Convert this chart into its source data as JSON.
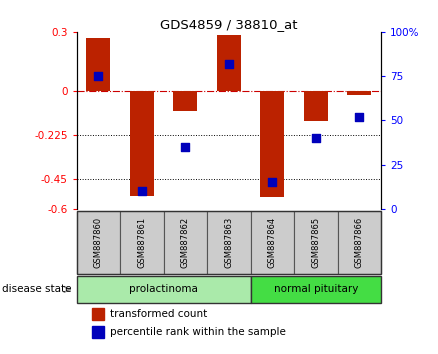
{
  "title": "GDS4859 / 38810_at",
  "samples": [
    "GSM887860",
    "GSM887861",
    "GSM887862",
    "GSM887863",
    "GSM887864",
    "GSM887865",
    "GSM887866"
  ],
  "transformed_count": [
    0.27,
    -0.535,
    -0.1,
    0.285,
    -0.54,
    -0.155,
    -0.02
  ],
  "percentile_rank": [
    75,
    10,
    35,
    82,
    15,
    40,
    52
  ],
  "groups": [
    {
      "label": "prolactinoma",
      "indices": [
        0,
        1,
        2,
        3
      ],
      "color": "#aaeaaa"
    },
    {
      "label": "normal pituitary",
      "indices": [
        4,
        5,
        6
      ],
      "color": "#44dd44"
    }
  ],
  "ylim_left": [
    -0.6,
    0.3
  ],
  "ylim_right": [
    0,
    100
  ],
  "yticks_left": [
    -0.6,
    -0.45,
    -0.225,
    0,
    0.3
  ],
  "ytick_labels_left": [
    "-0.6",
    "-0.45",
    "-0.225",
    "0",
    "0.3"
  ],
  "yticks_right": [
    0,
    25,
    50,
    75,
    100
  ],
  "ytick_labels_right": [
    "0",
    "25",
    "50",
    "75",
    "100%"
  ],
  "bar_color": "#bb2200",
  "dot_color": "#0000bb",
  "zero_line_color": "#cc0000",
  "grid_line_color": "#000000",
  "bg_color": "#ffffff",
  "bar_width": 0.55,
  "dot_size": 30,
  "disease_state_label": "disease state",
  "legend_transformed": "transformed count",
  "legend_percentile": "percentile rank within the sample",
  "sample_box_color": "#cccccc",
  "sample_box_edge": "#888888"
}
